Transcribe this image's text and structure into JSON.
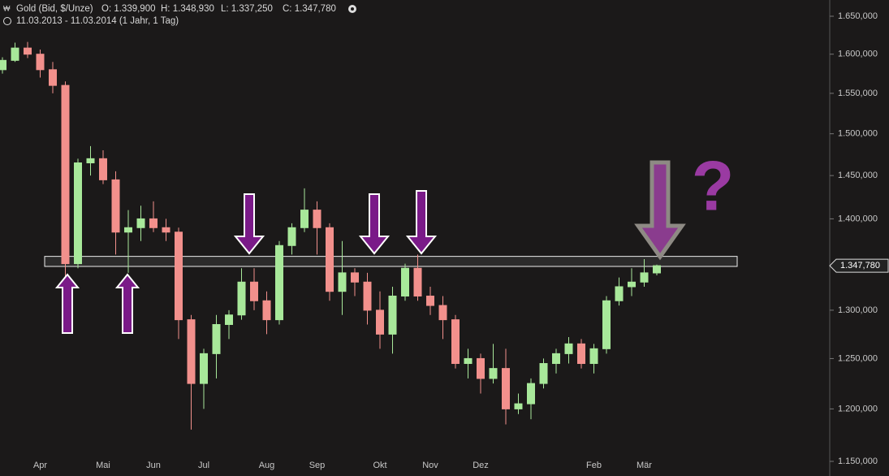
{
  "chart_data": {
    "type": "candlestick",
    "title": "Gold (Bid, $/Unze)",
    "subtitle": "11.03.2013 - 11.03.2014 (1 Jahr, 1 Tag)",
    "ohlc_labels": [
      "O: 1.339,900",
      "H: 1.348,930",
      "L: 1.337,250",
      "C: 1.347,780"
    ],
    "last_price": {
      "value": 1347.78,
      "label": "1.347,780"
    },
    "annotation": "?",
    "band": [
      1347,
      1358
    ],
    "log_scale": true,
    "grid": false,
    "up_color": "#a8e89a",
    "down_color": "#f2908c",
    "ylim": [
      1150,
      1650
    ],
    "yticks": [
      {
        "value": 1150,
        "label": "1.150,000"
      },
      {
        "value": 1200,
        "label": "1.200,000"
      },
      {
        "value": 1250,
        "label": "1.250,000"
      },
      {
        "value": 1300,
        "label": "1.300,000"
      },
      {
        "value": 1400,
        "label": "1.400,000"
      },
      {
        "value": 1450,
        "label": "1.450,000"
      },
      {
        "value": 1500,
        "label": "1.500,000"
      },
      {
        "value": 1550,
        "label": "1.550,000"
      },
      {
        "value": 1600,
        "label": "1.600,000"
      },
      {
        "value": 1650,
        "label": "1.650,000"
      }
    ],
    "categories": [
      null,
      null,
      null,
      "Apr",
      null,
      null,
      null,
      null,
      "Mai",
      null,
      null,
      null,
      "Jun",
      null,
      null,
      null,
      "Jul",
      null,
      null,
      null,
      null,
      "Aug",
      null,
      null,
      null,
      "Sep",
      null,
      null,
      null,
      null,
      "Okt",
      null,
      null,
      null,
      "Nov",
      null,
      null,
      null,
      "Dez",
      null,
      null,
      null,
      null,
      null,
      null,
      null,
      null,
      "Feb",
      null,
      null,
      null,
      "Mär",
      null
    ],
    "open": [
      1580,
      1592,
      1608,
      1600,
      1580,
      1560,
      1350,
      1465,
      1470,
      1445,
      1385,
      1390,
      1400,
      1390,
      1385,
      1290,
      1225,
      1255,
      1285,
      1295,
      1330,
      1310,
      1290,
      1370,
      1390,
      1410,
      1390,
      1320,
      1340,
      1330,
      1300,
      1275,
      1315,
      1345,
      1315,
      1305,
      1290,
      1245,
      1250,
      1230,
      1240,
      1200,
      1205,
      1225,
      1245,
      1255,
      1265,
      1245,
      1260,
      1310,
      1325,
      1330,
      1339.9
    ],
    "high": [
      1596,
      1615,
      1616,
      1606,
      1590,
      1565,
      1470,
      1485,
      1480,
      1455,
      1410,
      1415,
      1420,
      1400,
      1390,
      1295,
      1260,
      1295,
      1300,
      1345,
      1345,
      1320,
      1375,
      1395,
      1435,
      1420,
      1395,
      1375,
      1345,
      1340,
      1320,
      1325,
      1350,
      1360,
      1325,
      1315,
      1295,
      1260,
      1255,
      1265,
      1260,
      1215,
      1230,
      1250,
      1260,
      1272,
      1270,
      1265,
      1315,
      1335,
      1345,
      1355,
      1348.93
    ],
    "low": [
      1575,
      1590,
      1595,
      1570,
      1550,
      1321,
      1345,
      1450,
      1440,
      1360,
      1340,
      1375,
      1385,
      1375,
      1270,
      1180,
      1200,
      1230,
      1270,
      1290,
      1300,
      1275,
      1285,
      1360,
      1385,
      1360,
      1310,
      1295,
      1315,
      1285,
      1260,
      1255,
      1310,
      1310,
      1295,
      1270,
      1240,
      1230,
      1215,
      1225,
      1185,
      1195,
      1190,
      1220,
      1235,
      1245,
      1240,
      1235,
      1255,
      1305,
      1315,
      1325,
      1337.25
    ],
    "close": [
      1592,
      1608,
      1600,
      1580,
      1560,
      1350,
      1465,
      1470,
      1445,
      1385,
      1390,
      1400,
      1390,
      1385,
      1290,
      1225,
      1255,
      1285,
      1295,
      1330,
      1310,
      1290,
      1370,
      1390,
      1410,
      1390,
      1320,
      1340,
      1330,
      1300,
      1275,
      1315,
      1345,
      1315,
      1305,
      1290,
      1245,
      1250,
      1230,
      1240,
      1200,
      1205,
      1225,
      1245,
      1255,
      1265,
      1245,
      1260,
      1310,
      1325,
      1330,
      1340,
      1347.78
    ]
  }
}
